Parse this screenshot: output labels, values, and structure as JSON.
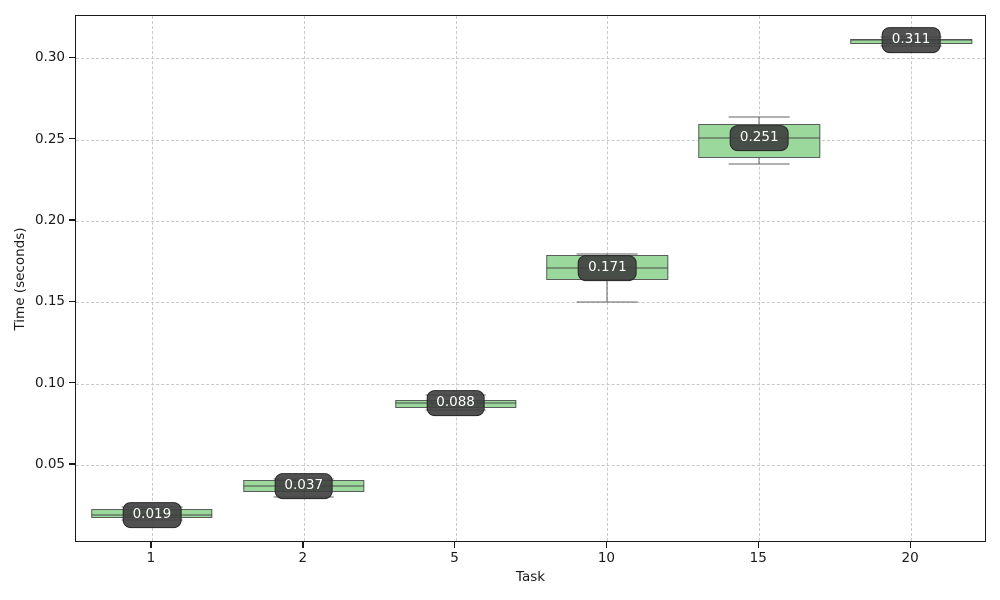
{
  "chart_data": {
    "type": "boxplot",
    "title": "",
    "xlabel": "Task",
    "ylabel": "Time (seconds)",
    "categories": [
      "1",
      "2",
      "5",
      "10",
      "15",
      "20"
    ],
    "ylim": [
      0.002,
      0.326
    ],
    "yticks": [
      0.05,
      0.1,
      0.15,
      0.2,
      0.25,
      0.3
    ],
    "ytick_labels": [
      "0.05",
      "0.10",
      "0.15",
      "0.20",
      "0.25",
      "0.30"
    ],
    "grid": true,
    "legend": "none",
    "boxes": [
      {
        "category": "1",
        "whislo": 0.016,
        "q1": 0.0173,
        "med": 0.019,
        "q3": 0.0232,
        "whishi": 0.0242,
        "annotation": "0.019"
      },
      {
        "category": "2",
        "whislo": 0.0305,
        "q1": 0.0336,
        "med": 0.037,
        "q3": 0.0406,
        "whishi": 0.0415,
        "annotation": "0.037"
      },
      {
        "category": "5",
        "whislo": 0.0838,
        "q1": 0.0852,
        "med": 0.088,
        "q3": 0.0897,
        "whishi": 0.0928,
        "annotation": "0.088"
      },
      {
        "category": "10",
        "whislo": 0.15,
        "q1": 0.1634,
        "med": 0.171,
        "q3": 0.1788,
        "whishi": 0.1796,
        "annotation": "0.171"
      },
      {
        "category": "15",
        "whislo": 0.2351,
        "q1": 0.2384,
        "med": 0.251,
        "q3": 0.2596,
        "whishi": 0.2638,
        "annotation": "0.251"
      },
      {
        "category": "20",
        "whislo": 0.3078,
        "q1": 0.309,
        "med": 0.311,
        "q3": 0.3121,
        "whishi": 0.3133,
        "annotation": "0.311"
      }
    ],
    "style": {
      "box_fill": "#9bd89b",
      "box_edge": "#5c5c5c",
      "median_color": "#4a4a4a",
      "whisker_color": "#636363",
      "grid_color": "#c9c9c9",
      "spine_color": "#1a1a1a",
      "annotation_bg": "#3e3e3e",
      "annotation_text": "#ffffff",
      "background": "#ffffff"
    }
  }
}
